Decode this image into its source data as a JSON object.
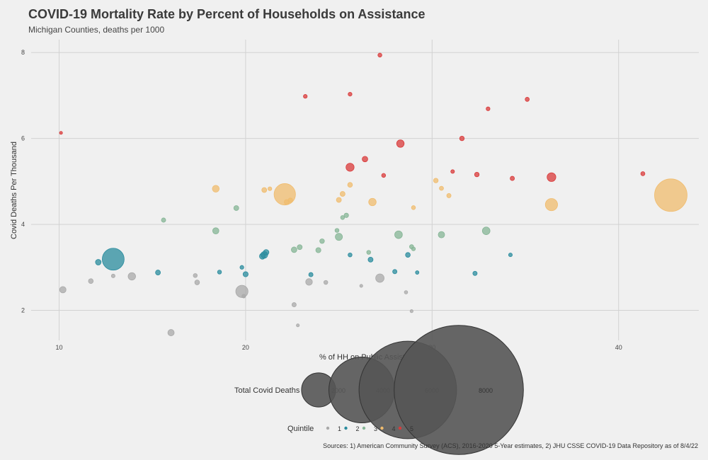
{
  "title": "COVID-19 Mortality Rate by Percent of Households on Assistance",
  "subtitle": "Michigan Counties, deaths per 1000",
  "source": "Sources: 1) American Community Survey (ACS), 2016-2020 5-Year estimates, 2) JHU CSSE COVID-19 Data Repository as of 8/4/22",
  "chart_data": {
    "type": "scatter",
    "xlabel": "% of HH on Public Assist.",
    "ylabel": "Covid Deaths Per Thousand",
    "xlim": [
      8.5,
      44.3
    ],
    "ylim": [
      1.3,
      8.3
    ],
    "xticks": [
      10,
      20,
      30,
      40
    ],
    "yticks": [
      2,
      4,
      6,
      8
    ],
    "grid": true,
    "legend_placement": "bottom",
    "size_legend": {
      "title": "Total Covid Deaths",
      "values": [
        2000,
        4000,
        6000,
        8000
      ],
      "labels": [
        "2000",
        "4000",
        "6000",
        "8000"
      ]
    },
    "color_legend": {
      "title": "Quintile",
      "labels": [
        "1",
        "2",
        "3",
        "4",
        "5"
      ],
      "colors": [
        "#a9a9a9",
        "#2a8c9e",
        "#86b596",
        "#f0bc6e",
        "#d93a3a"
      ]
    },
    "points": [
      {
        "x": 10.2,
        "y": 2.48,
        "deaths": 250,
        "q": 1
      },
      {
        "x": 11.7,
        "y": 2.68,
        "deaths": 150,
        "q": 1
      },
      {
        "x": 12.9,
        "y": 2.8,
        "deaths": 80,
        "q": 1
      },
      {
        "x": 13.9,
        "y": 2.79,
        "deaths": 320,
        "q": 1
      },
      {
        "x": 16.0,
        "y": 1.48,
        "deaths": 250,
        "q": 1
      },
      {
        "x": 17.3,
        "y": 2.81,
        "deaths": 100,
        "q": 1
      },
      {
        "x": 17.4,
        "y": 2.65,
        "deaths": 150,
        "q": 1
      },
      {
        "x": 19.8,
        "y": 2.44,
        "deaths": 620,
        "q": 1
      },
      {
        "x": 19.9,
        "y": 2.33,
        "deaths": 80,
        "q": 1
      },
      {
        "x": 22.6,
        "y": 2.13,
        "deaths": 120,
        "q": 1
      },
      {
        "x": 22.8,
        "y": 1.65,
        "deaths": 40,
        "q": 1
      },
      {
        "x": 23.4,
        "y": 2.66,
        "deaths": 270,
        "q": 1
      },
      {
        "x": 24.3,
        "y": 2.65,
        "deaths": 100,
        "q": 1
      },
      {
        "x": 26.2,
        "y": 2.57,
        "deaths": 40,
        "q": 1
      },
      {
        "x": 27.2,
        "y": 2.75,
        "deaths": 380,
        "q": 1
      },
      {
        "x": 28.6,
        "y": 2.42,
        "deaths": 60,
        "q": 1
      },
      {
        "x": 28.9,
        "y": 1.98,
        "deaths": 40,
        "q": 1
      },
      {
        "x": 12.1,
        "y": 3.12,
        "deaths": 200,
        "q": 2
      },
      {
        "x": 12.9,
        "y": 3.19,
        "deaths": 1230,
        "q": 2
      },
      {
        "x": 15.3,
        "y": 2.88,
        "deaths": 160,
        "q": 2
      },
      {
        "x": 18.6,
        "y": 2.89,
        "deaths": 100,
        "q": 2
      },
      {
        "x": 19.8,
        "y": 3.0,
        "deaths": 90,
        "q": 2
      },
      {
        "x": 20.0,
        "y": 2.84,
        "deaths": 170,
        "q": 2
      },
      {
        "x": 20.9,
        "y": 3.26,
        "deaths": 220,
        "q": 2
      },
      {
        "x": 21.0,
        "y": 3.29,
        "deaths": 280,
        "q": 2
      },
      {
        "x": 21.1,
        "y": 3.35,
        "deaths": 200,
        "q": 2
      },
      {
        "x": 23.5,
        "y": 2.83,
        "deaths": 120,
        "q": 2
      },
      {
        "x": 25.6,
        "y": 3.29,
        "deaths": 100,
        "q": 2
      },
      {
        "x": 26.7,
        "y": 3.18,
        "deaths": 160,
        "q": 2
      },
      {
        "x": 28.0,
        "y": 2.9,
        "deaths": 120,
        "q": 2
      },
      {
        "x": 28.7,
        "y": 3.29,
        "deaths": 150,
        "q": 2
      },
      {
        "x": 29.2,
        "y": 2.88,
        "deaths": 70,
        "q": 2
      },
      {
        "x": 32.3,
        "y": 2.86,
        "deaths": 120,
        "q": 2
      },
      {
        "x": 34.2,
        "y": 3.29,
        "deaths": 80,
        "q": 2
      },
      {
        "x": 15.6,
        "y": 4.1,
        "deaths": 120,
        "q": 3
      },
      {
        "x": 18.4,
        "y": 3.85,
        "deaths": 240,
        "q": 3
      },
      {
        "x": 19.5,
        "y": 4.38,
        "deaths": 160,
        "q": 3
      },
      {
        "x": 22.6,
        "y": 3.41,
        "deaths": 200,
        "q": 3
      },
      {
        "x": 22.9,
        "y": 3.47,
        "deaths": 160,
        "q": 3
      },
      {
        "x": 23.9,
        "y": 3.4,
        "deaths": 170,
        "q": 3
      },
      {
        "x": 24.1,
        "y": 3.61,
        "deaths": 140,
        "q": 3
      },
      {
        "x": 24.9,
        "y": 3.86,
        "deaths": 100,
        "q": 3
      },
      {
        "x": 25.0,
        "y": 3.71,
        "deaths": 300,
        "q": 3
      },
      {
        "x": 25.2,
        "y": 4.16,
        "deaths": 100,
        "q": 3
      },
      {
        "x": 25.4,
        "y": 4.21,
        "deaths": 130,
        "q": 3
      },
      {
        "x": 26.6,
        "y": 3.35,
        "deaths": 100,
        "q": 3
      },
      {
        "x": 28.2,
        "y": 3.76,
        "deaths": 330,
        "q": 3
      },
      {
        "x": 28.9,
        "y": 3.48,
        "deaths": 110,
        "q": 3
      },
      {
        "x": 29.0,
        "y": 3.43,
        "deaths": 90,
        "q": 3
      },
      {
        "x": 30.5,
        "y": 3.76,
        "deaths": 250,
        "q": 3
      },
      {
        "x": 32.9,
        "y": 3.85,
        "deaths": 330,
        "q": 3
      },
      {
        "x": 18.4,
        "y": 4.83,
        "deaths": 280,
        "q": 4
      },
      {
        "x": 21.0,
        "y": 4.8,
        "deaths": 160,
        "q": 4
      },
      {
        "x": 21.3,
        "y": 4.83,
        "deaths": 90,
        "q": 4
      },
      {
        "x": 22.1,
        "y": 4.7,
        "deaths": 1200,
        "q": 4
      },
      {
        "x": 22.2,
        "y": 4.52,
        "deaths": 160,
        "q": 4
      },
      {
        "x": 22.4,
        "y": 4.56,
        "deaths": 140,
        "q": 4
      },
      {
        "x": 25.0,
        "y": 4.57,
        "deaths": 160,
        "q": 4
      },
      {
        "x": 25.2,
        "y": 4.71,
        "deaths": 160,
        "q": 4
      },
      {
        "x": 25.6,
        "y": 4.92,
        "deaths": 150,
        "q": 4
      },
      {
        "x": 26.8,
        "y": 4.52,
        "deaths": 320,
        "q": 4
      },
      {
        "x": 29.0,
        "y": 4.39,
        "deaths": 100,
        "q": 4
      },
      {
        "x": 30.2,
        "y": 5.02,
        "deaths": 140,
        "q": 4
      },
      {
        "x": 30.5,
        "y": 4.84,
        "deaths": 110,
        "q": 4
      },
      {
        "x": 30.9,
        "y": 4.67,
        "deaths": 120,
        "q": 4
      },
      {
        "x": 36.4,
        "y": 4.46,
        "deaths": 620,
        "q": 4
      },
      {
        "x": 42.8,
        "y": 4.68,
        "deaths": 1900,
        "q": 4
      },
      {
        "x": 10.1,
        "y": 6.13,
        "deaths": 40,
        "q": 5
      },
      {
        "x": 23.2,
        "y": 6.98,
        "deaths": 90,
        "q": 5
      },
      {
        "x": 25.6,
        "y": 7.03,
        "deaths": 90,
        "q": 5
      },
      {
        "x": 25.6,
        "y": 5.33,
        "deaths": 360,
        "q": 5
      },
      {
        "x": 26.4,
        "y": 5.52,
        "deaths": 200,
        "q": 5
      },
      {
        "x": 27.2,
        "y": 7.94,
        "deaths": 100,
        "q": 5
      },
      {
        "x": 27.4,
        "y": 5.14,
        "deaths": 100,
        "q": 5
      },
      {
        "x": 28.3,
        "y": 5.88,
        "deaths": 320,
        "q": 5
      },
      {
        "x": 31.1,
        "y": 5.23,
        "deaths": 80,
        "q": 5
      },
      {
        "x": 31.6,
        "y": 6.0,
        "deaths": 140,
        "q": 5
      },
      {
        "x": 32.4,
        "y": 5.16,
        "deaths": 140,
        "q": 5
      },
      {
        "x": 33.0,
        "y": 6.69,
        "deaths": 90,
        "q": 5
      },
      {
        "x": 34.3,
        "y": 5.07,
        "deaths": 120,
        "q": 5
      },
      {
        "x": 35.1,
        "y": 6.91,
        "deaths": 110,
        "q": 5
      },
      {
        "x": 36.4,
        "y": 5.1,
        "deaths": 400,
        "q": 5
      },
      {
        "x": 41.3,
        "y": 5.18,
        "deaths": 110,
        "q": 5
      }
    ]
  }
}
